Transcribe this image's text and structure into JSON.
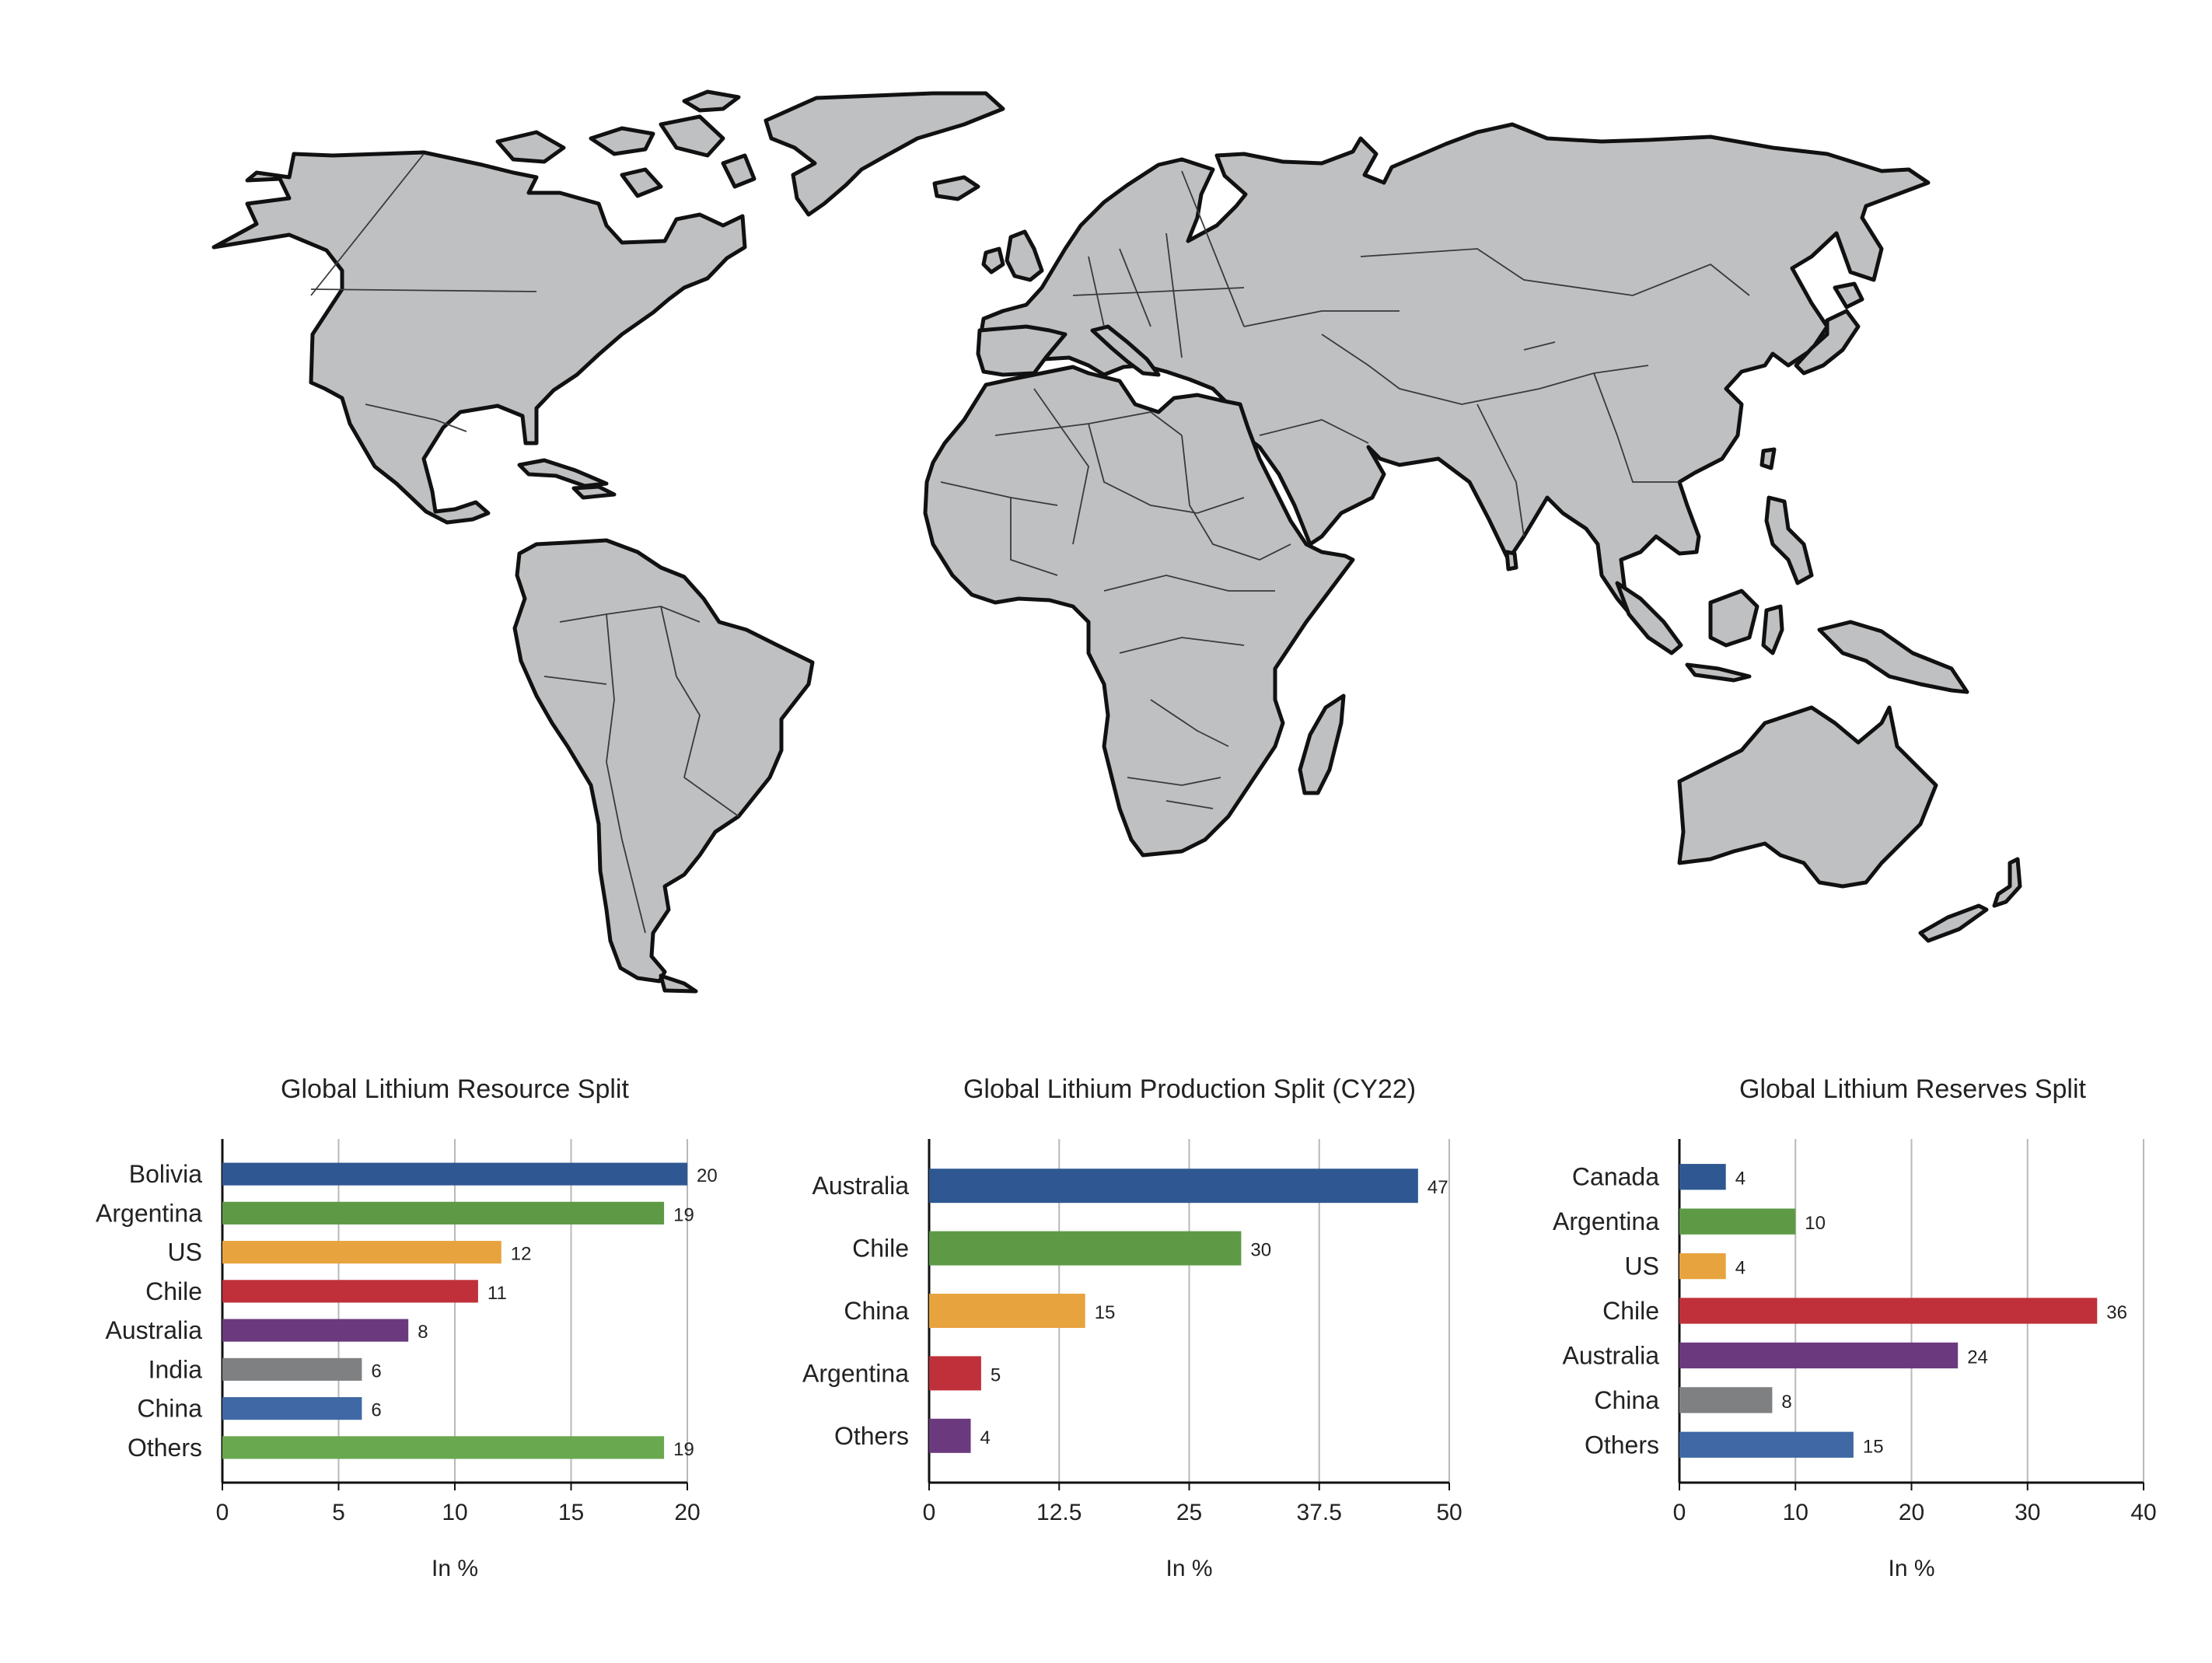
{
  "colors": {
    "land": "#bfc0c2",
    "coast": "#111111",
    "grid": "#b9b9b9",
    "axis": "#111111",
    "text": "#222222"
  },
  "chart_data": [
    {
      "type": "bar",
      "orientation": "horizontal",
      "title": "Global Lithium Resource Split",
      "xlabel": "In %",
      "ylabel": "",
      "xlim": [
        0,
        20
      ],
      "xticks": [
        0,
        5,
        10,
        15,
        20
      ],
      "xtick_labels": [
        "0",
        "5",
        "10",
        "15",
        "20"
      ],
      "grid": true,
      "categories": [
        "Bolivia",
        "Argentina",
        "US",
        "Chile",
        "Australia",
        "India",
        "China",
        "Others"
      ],
      "values": [
        20,
        19,
        12,
        11,
        8,
        6,
        6,
        19
      ],
      "value_labels": [
        "20",
        "19",
        "12",
        "11",
        "8",
        "6",
        "6",
        "19"
      ],
      "colors": [
        "#2f5892",
        "#5e9a45",
        "#e7a33e",
        "#c0303a",
        "#6b3a7e",
        "#7f8082",
        "#3f68a5",
        "#6aa84f"
      ]
    },
    {
      "type": "bar",
      "orientation": "horizontal",
      "title": "Global Lithium Production Split (CY22)",
      "xlabel": "In %",
      "ylabel": "",
      "xlim": [
        0,
        50
      ],
      "xticks": [
        0,
        12.5,
        25,
        37.5,
        50
      ],
      "xtick_labels": [
        "0",
        "12.5",
        "25",
        "37.5",
        "50"
      ],
      "grid": true,
      "categories": [
        "Australia",
        "Chile",
        "China",
        "Argentina",
        "Others"
      ],
      "values": [
        47,
        30,
        15,
        5,
        4
      ],
      "value_labels": [
        "47",
        "30",
        "15",
        "5",
        "4"
      ],
      "colors": [
        "#2f5892",
        "#5e9a45",
        "#e7a33e",
        "#c0303a",
        "#6b3a7e"
      ]
    },
    {
      "type": "bar",
      "orientation": "horizontal",
      "title": "Global Lithium Reserves Split",
      "xlabel": "In %",
      "ylabel": "",
      "xlim": [
        0,
        40
      ],
      "xticks": [
        0,
        10,
        20,
        30,
        40
      ],
      "xtick_labels": [
        "0",
        "10",
        "20",
        "30",
        "40"
      ],
      "grid": true,
      "categories": [
        "Canada",
        "Argentina",
        "US",
        "Chile",
        "Australia",
        "China",
        "Others"
      ],
      "values": [
        4,
        10,
        4,
        36,
        24,
        8,
        15
      ],
      "value_labels": [
        "4",
        "10",
        "4",
        "36",
        "24",
        "8",
        "15"
      ],
      "colors": [
        "#2f5892",
        "#5e9a45",
        "#e7a33e",
        "#c0303a",
        "#6b3a7e",
        "#7f8082",
        "#3f68a5"
      ]
    }
  ]
}
